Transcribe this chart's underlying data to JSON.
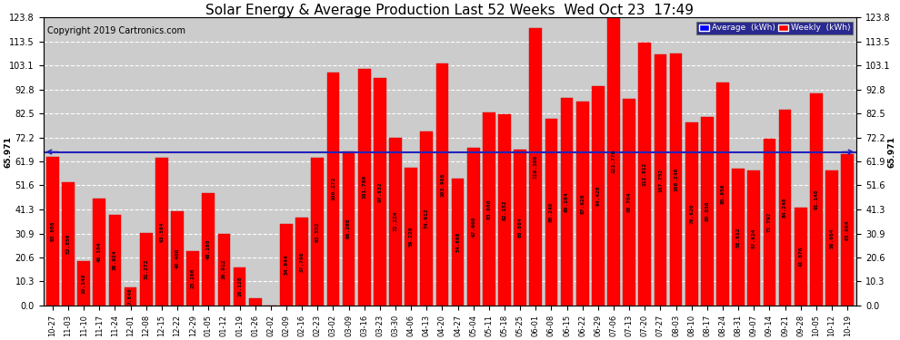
{
  "title": "Solar Energy & Average Production Last 52 Weeks  Wed Oct 23  17:49",
  "copyright": "Copyright 2019 Cartronics.com",
  "average_line": 65.971,
  "average_label": "65.971",
  "bar_color": "#ff0000",
  "background_color": "#ffffff",
  "plot_bg_color": "#cccccc",
  "grid_color": "#ffffff",
  "average_line_color": "#2222bb",
  "ylim_min": 0.0,
  "ylim_max": 123.8,
  "yticks": [
    0.0,
    10.3,
    20.6,
    30.9,
    41.3,
    51.6,
    61.9,
    72.2,
    82.5,
    92.8,
    103.1,
    113.5,
    123.8
  ],
  "categories": [
    "10-27",
    "11-03",
    "11-10",
    "11-17",
    "11-24",
    "12-01",
    "12-08",
    "12-15",
    "12-22",
    "12-29",
    "01-05",
    "01-12",
    "01-19",
    "01-26",
    "02-02",
    "02-09",
    "02-16",
    "02-23",
    "03-02",
    "03-09",
    "03-16",
    "03-23",
    "03-30",
    "04-06",
    "04-13",
    "04-20",
    "04-27",
    "05-04",
    "05-11",
    "05-18",
    "05-25",
    "06-01",
    "06-08",
    "06-15",
    "06-22",
    "06-29",
    "07-06",
    "07-13",
    "07-20",
    "07-27",
    "08-03",
    "08-10",
    "08-17",
    "08-24",
    "08-31",
    "09-07",
    "09-14",
    "09-21",
    "09-28",
    "10-05",
    "10-12",
    "10-19"
  ],
  "values": [
    63.808,
    52.856,
    19.148,
    46.104,
    38.924,
    7.84,
    31.272,
    63.584,
    40.408,
    23.2,
    48.16,
    30.912,
    16.128,
    3.012,
    0.0,
    34.944,
    37.796,
    63.552,
    100.272,
    66.208,
    101.78,
    97.632,
    72.224,
    59.22,
    74.912,
    103.908,
    54.668,
    67.608,
    83.0,
    82.152,
    66.804,
    119.3,
    80.248,
    89.204,
    87.62,
    94.42,
    123.776,
    88.704,
    112.812,
    107.752,
    108.24,
    78.62,
    80.856,
    95.956,
    58.612,
    57.824,
    71.792,
    84.24,
    41.876,
    91.14,
    58.084,
    65.084
  ],
  "title_fontsize": 11,
  "copyright_fontsize": 7,
  "bar_width": 0.8,
  "legend_avg_color": "#0000ff",
  "legend_weekly_color": "#ff0000"
}
